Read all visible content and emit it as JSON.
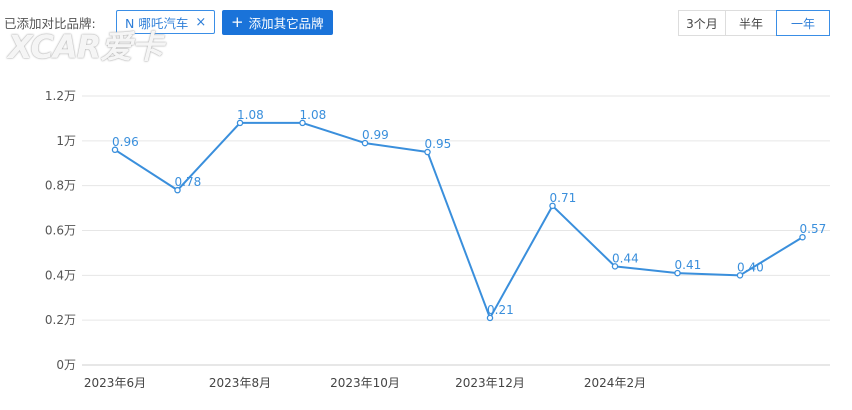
{
  "toolbar": {
    "compare_label": "已添加对比品牌:",
    "brand_tag": "N 哪吒汽车",
    "brand_close": "×",
    "add_button": "添加其它品牌",
    "add_icon": "plus-icon",
    "ranges": [
      "3个月",
      "半年",
      "一年"
    ],
    "active_range": "一年"
  },
  "watermark": "XCAR爱卡",
  "colors": {
    "line": "#3a8fdc",
    "accent": "#1a73d9",
    "grid": "#e6e6e6",
    "label": "#3a8fdc"
  },
  "chart_data": {
    "type": "line",
    "y_unit": "万",
    "ylim": [
      0,
      1.2
    ],
    "yticks": [
      "0万",
      "0.2万",
      "0.4万",
      "0.6万",
      "0.8万",
      "1万",
      "1.2万"
    ],
    "x_tick_labels": [
      "2023年6月",
      "2023年8月",
      "2023年10月",
      "2023年12月",
      "2024年2月"
    ],
    "x": [
      "2023-06",
      "2023-07",
      "2023-08",
      "2023-09",
      "2023-10",
      "2023-11",
      "2023-12",
      "2024-01",
      "2024-02",
      "2024-03",
      "2024-04",
      "2024-05"
    ],
    "values": [
      0.96,
      0.78,
      1.08,
      1.08,
      0.99,
      0.95,
      0.21,
      0.71,
      0.44,
      0.41,
      0.4,
      0.57
    ],
    "labels": [
      "0.96",
      "0.78",
      "1.08",
      "1.08",
      "0.99",
      "0.95",
      "0.21",
      "0.71",
      "0.44",
      "0.41",
      "0.40",
      "0.57"
    ],
    "grid": true,
    "legend": "none"
  }
}
